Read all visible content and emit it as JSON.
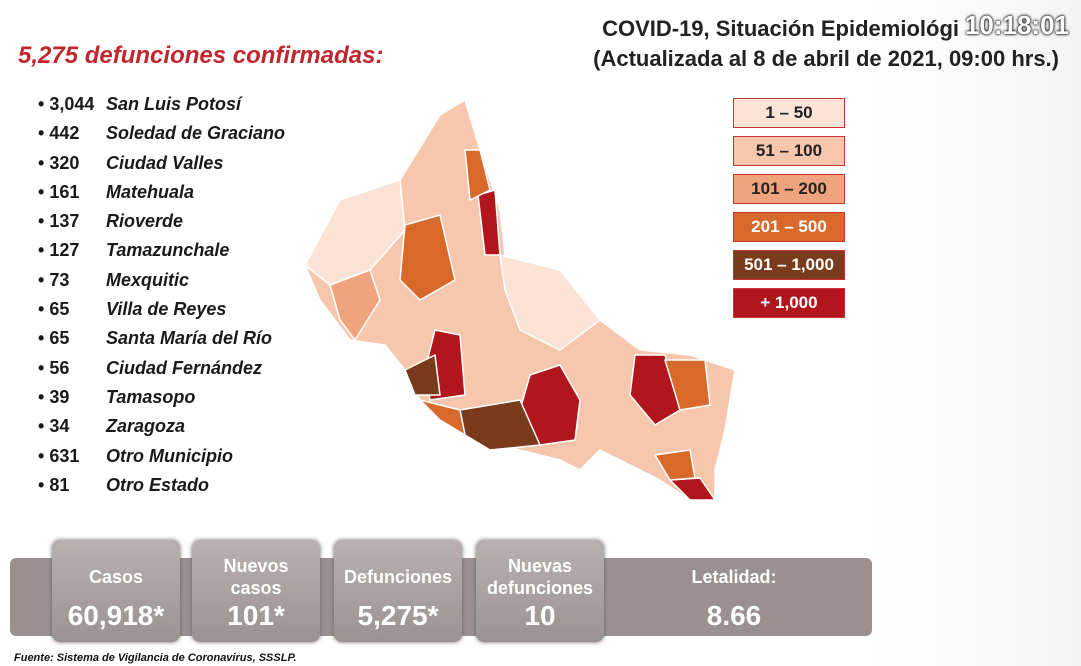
{
  "header": {
    "title": "COVID-19, Situación Epidemiológi",
    "clock": "10:18:01",
    "subtitle": "(Actualizada al 8 de abril de 2021, 09:00 hrs.)"
  },
  "deaths_heading": "5,275 defunciones confirmadas:",
  "municipalities": [
    {
      "count": "3,044",
      "name": "San Luis Potosí"
    },
    {
      "count": "442",
      "name": "Soledad de Graciano"
    },
    {
      "count": "320",
      "name": "Ciudad Valles"
    },
    {
      "count": "161",
      "name": "Matehuala"
    },
    {
      "count": "137",
      "name": "Rioverde"
    },
    {
      "count": "127",
      "name": "Tamazunchale"
    },
    {
      "count": "73",
      "name": "Mexquitic"
    },
    {
      "count": "65",
      "name": "Villa de Reyes"
    },
    {
      "count": "65",
      "name": "Santa María del Río"
    },
    {
      "count": "56",
      "name": "Ciudad Fernández"
    },
    {
      "count": "39",
      "name": "Tamasopo"
    },
    {
      "count": "34",
      "name": "Zaragoza"
    },
    {
      "count": "631",
      "name": "Otro Municipio"
    },
    {
      "count": "81",
      "name": "Otro Estado"
    }
  ],
  "legend": [
    {
      "label": "1 – 50",
      "color": "#fbe3d6",
      "text": "#222"
    },
    {
      "label": "51 – 100",
      "color": "#f6c7ad",
      "text": "#222"
    },
    {
      "label": "101 – 200",
      "color": "#f0a47e",
      "text": "#222"
    },
    {
      "label": "201 – 500",
      "color": "#d8692b",
      "text": "#fff"
    },
    {
      "label": "501 – 1,000",
      "color": "#7a3b1d",
      "text": "#fff"
    },
    {
      "label": "+ 1,000",
      "color": "#b0161b",
      "text": "#fff"
    }
  ],
  "stats": [
    {
      "label": "Casos",
      "value": "60,918*"
    },
    {
      "label": "Nuevos casos",
      "value": "101*"
    },
    {
      "label": "Defunciones",
      "value": "5,275*"
    },
    {
      "label": "Nuevas defunciones",
      "value": "10"
    },
    {
      "label": "Letalidad:",
      "value": "8.66"
    }
  ],
  "source": "Fuente: Sistema de Vigilancia de Coronavirus, SSSLP."
}
